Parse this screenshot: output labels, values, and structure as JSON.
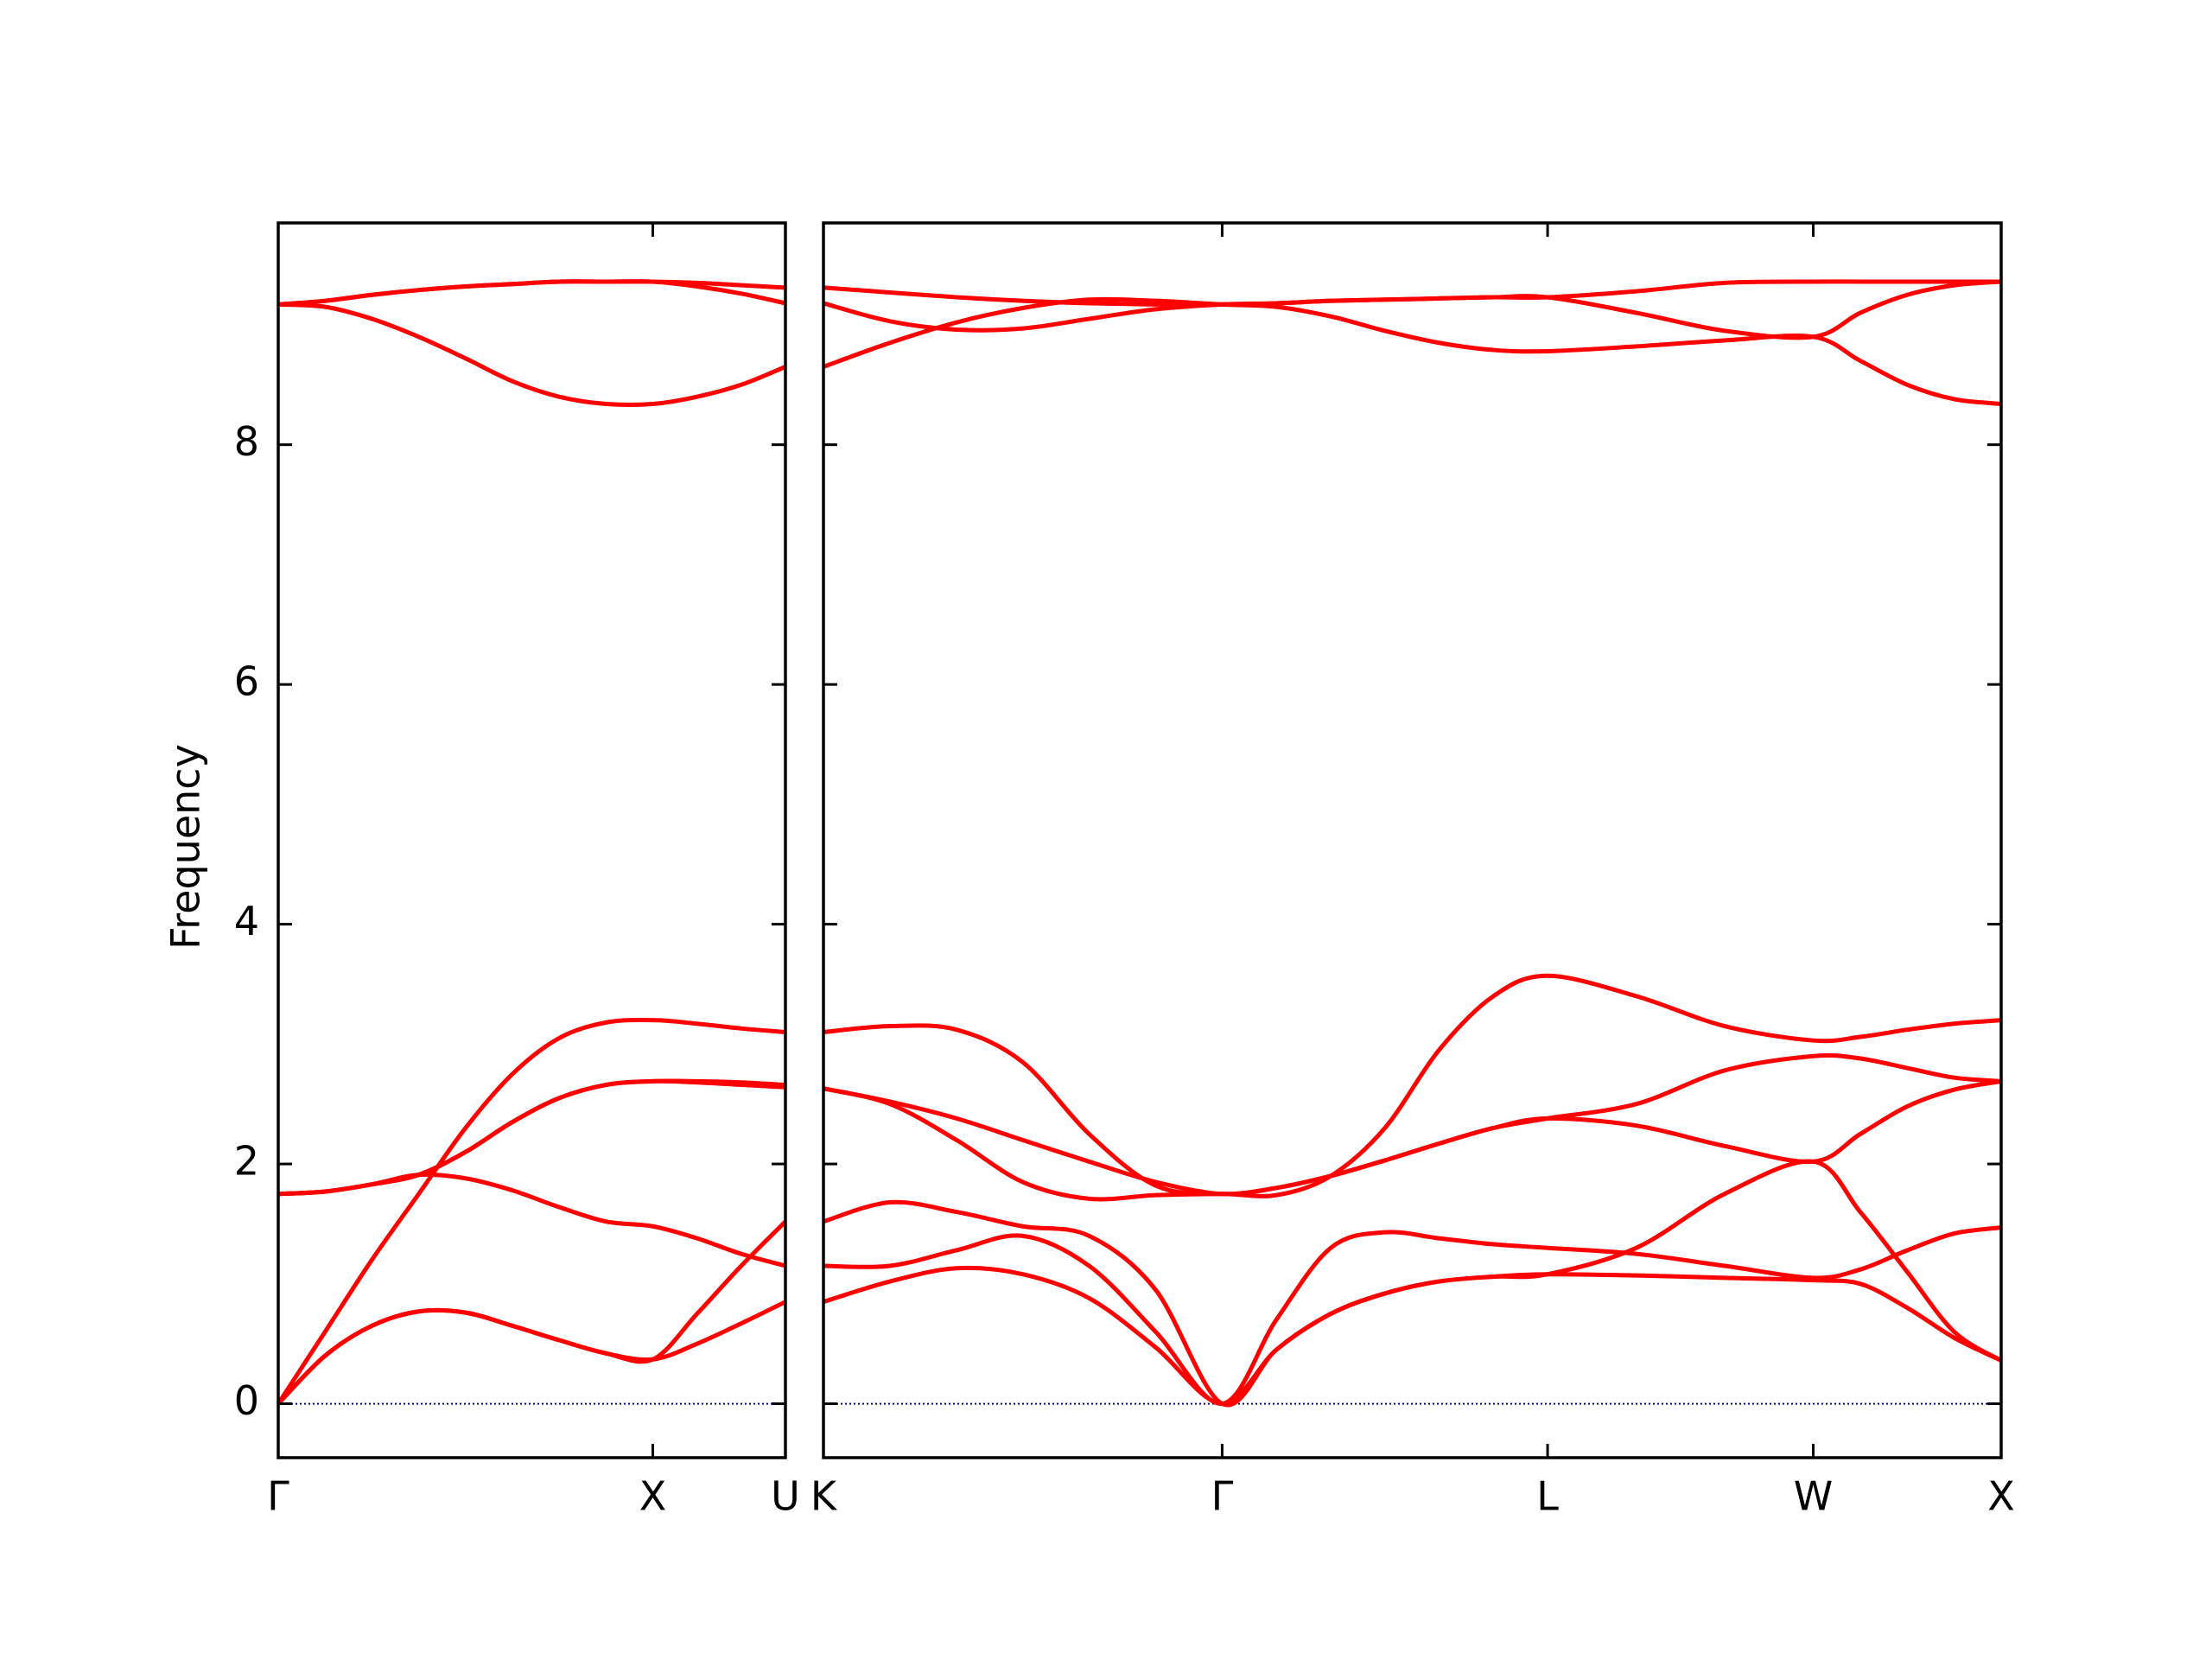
{
  "chart_data": [
    {
      "type": "line",
      "ylabel": "Frequency",
      "x": [
        0,
        0.125,
        0.25,
        0.375,
        0.5,
        0.625,
        0.75,
        0.875,
        1.0,
        1.118,
        1.236,
        1.354
      ],
      "xlim": [
        0,
        1.354
      ],
      "ylim": [
        -0.45,
        9.85
      ],
      "xticks": [
        {
          "value": 0,
          "label": "Γ"
        },
        {
          "value": 1.0,
          "label": "X"
        },
        {
          "value": 1.354,
          "label": "U"
        }
      ],
      "yticks": [
        0,
        2,
        4,
        6,
        8
      ],
      "ytick_labels": true,
      "color": "#ff0000",
      "hline": 0,
      "hline_color": "#00008b",
      "series": [
        {
          "values": [
            0,
            0.4,
            0.65,
            0.77,
            0.76,
            0.65,
            0.53,
            0.42,
            0.37,
            0.5,
            0.67,
            0.85
          ]
        },
        {
          "values": [
            0,
            0.4,
            0.65,
            0.77,
            0.76,
            0.65,
            0.53,
            0.42,
            0.37,
            0.75,
            1.15,
            1.52
          ]
        },
        {
          "values": [
            0,
            0.6,
            1.2,
            1.75,
            2.3,
            2.75,
            3.05,
            3.18,
            3.2,
            3.17,
            3.13,
            3.1
          ]
        },
        {
          "values": [
            1.75,
            1.77,
            1.83,
            1.91,
            1.88,
            1.78,
            1.64,
            1.52,
            1.48,
            1.38,
            1.25,
            1.15
          ]
        },
        {
          "values": [
            1.75,
            1.77,
            1.83,
            1.91,
            2.1,
            2.35,
            2.55,
            2.66,
            2.69,
            2.68,
            2.66,
            2.64
          ]
        },
        {
          "values": [
            1.75,
            1.77,
            1.83,
            1.91,
            2.1,
            2.35,
            2.55,
            2.66,
            2.69,
            2.69,
            2.68,
            2.66
          ]
        },
        {
          "values": [
            9.17,
            9.15,
            9.05,
            8.9,
            8.72,
            8.53,
            8.4,
            8.34,
            8.34,
            8.4,
            8.5,
            8.65
          ]
        },
        {
          "values": [
            9.17,
            9.2,
            9.25,
            9.29,
            9.32,
            9.34,
            9.36,
            9.36,
            9.36,
            9.32,
            9.26,
            9.18
          ]
        },
        {
          "values": [
            9.17,
            9.2,
            9.25,
            9.29,
            9.32,
            9.34,
            9.36,
            9.36,
            9.36,
            9.35,
            9.33,
            9.31
          ]
        }
      ]
    },
    {
      "type": "line",
      "x": [
        0,
        0.177,
        0.354,
        0.53,
        0.707,
        0.884,
        1.061,
        1.205,
        1.35,
        1.494,
        1.638,
        1.783,
        1.927,
        2.163,
        2.398,
        2.634,
        2.759,
        2.884,
        3.009,
        3.134
      ],
      "xlim": [
        0,
        3.134
      ],
      "ylim": [
        -0.45,
        9.85
      ],
      "xticks": [
        {
          "value": 0,
          "label": "K"
        },
        {
          "value": 1.061,
          "label": "Γ"
        },
        {
          "value": 1.927,
          "label": "L"
        },
        {
          "value": 2.634,
          "label": "W"
        },
        {
          "value": 3.134,
          "label": "X"
        }
      ],
      "yticks": [
        0,
        2,
        4,
        6,
        8
      ],
      "ytick_labels": false,
      "color": "#ff0000",
      "hline": 0,
      "hline_color": "#00008b",
      "series": [
        {
          "values": [
            0.85,
            1.02,
            1.13,
            1.08,
            0.88,
            0.47,
            0,
            0.45,
            0.75,
            0.92,
            1.02,
            1.06,
            1.08,
            1.07,
            1.05,
            1.03,
            1.0,
            0.8,
            0.55,
            0.36
          ]
        },
        {
          "values": [
            1.15,
            1.15,
            1.28,
            1.4,
            1.15,
            0.6,
            0,
            0.7,
            1.3,
            1.43,
            1.38,
            1.33,
            1.3,
            1.25,
            1.15,
            1.05,
            1.12,
            1.28,
            1.42,
            1.47
          ]
        },
        {
          "values": [
            1.52,
            1.68,
            1.6,
            1.48,
            1.4,
            0.95,
            0,
            0.45,
            0.75,
            0.92,
            1.02,
            1.06,
            1.08,
            1.3,
            1.75,
            2.02,
            1.6,
            1.1,
            0.6,
            0.36
          ]
        },
        {
          "values": [
            2.63,
            2.5,
            2.2,
            1.85,
            1.71,
            1.74,
            1.75,
            1.74,
            1.9,
            2.3,
            2.95,
            3.4,
            3.57,
            3.4,
            3.15,
            3.03,
            3.06,
            3.12,
            3.17,
            3.2
          ]
        },
        {
          "values": [
            2.63,
            2.52,
            2.38,
            2.2,
            2.02,
            1.85,
            1.75,
            1.8,
            1.9,
            2.03,
            2.17,
            2.3,
            2.38,
            2.5,
            2.78,
            2.9,
            2.88,
            2.8,
            2.72,
            2.69
          ]
        },
        {
          "values": [
            3.1,
            3.15,
            3.12,
            2.85,
            2.25,
            1.82,
            1.75,
            1.8,
            1.9,
            2.03,
            2.17,
            2.3,
            2.38,
            2.32,
            2.15,
            2.02,
            2.25,
            2.48,
            2.62,
            2.69
          ]
        },
        {
          "values": [
            8.65,
            8.85,
            9.02,
            9.14,
            9.21,
            9.2,
            9.17,
            9.15,
            9.07,
            8.95,
            8.85,
            8.79,
            8.78,
            8.82,
            8.87,
            8.9,
            8.7,
            8.5,
            8.38,
            8.34
          ]
        },
        {
          "values": [
            9.18,
            9.03,
            8.96,
            8.97,
            9.05,
            9.13,
            9.17,
            9.18,
            9.2,
            9.21,
            9.22,
            9.23,
            9.23,
            9.1,
            8.95,
            8.9,
            9.1,
            9.25,
            9.33,
            9.36
          ]
        },
        {
          "values": [
            9.31,
            9.27,
            9.23,
            9.2,
            9.18,
            9.17,
            9.17,
            9.18,
            9.2,
            9.21,
            9.22,
            9.23,
            9.23,
            9.28,
            9.35,
            9.36,
            9.36,
            9.36,
            9.36,
            9.36
          ]
        }
      ]
    }
  ]
}
